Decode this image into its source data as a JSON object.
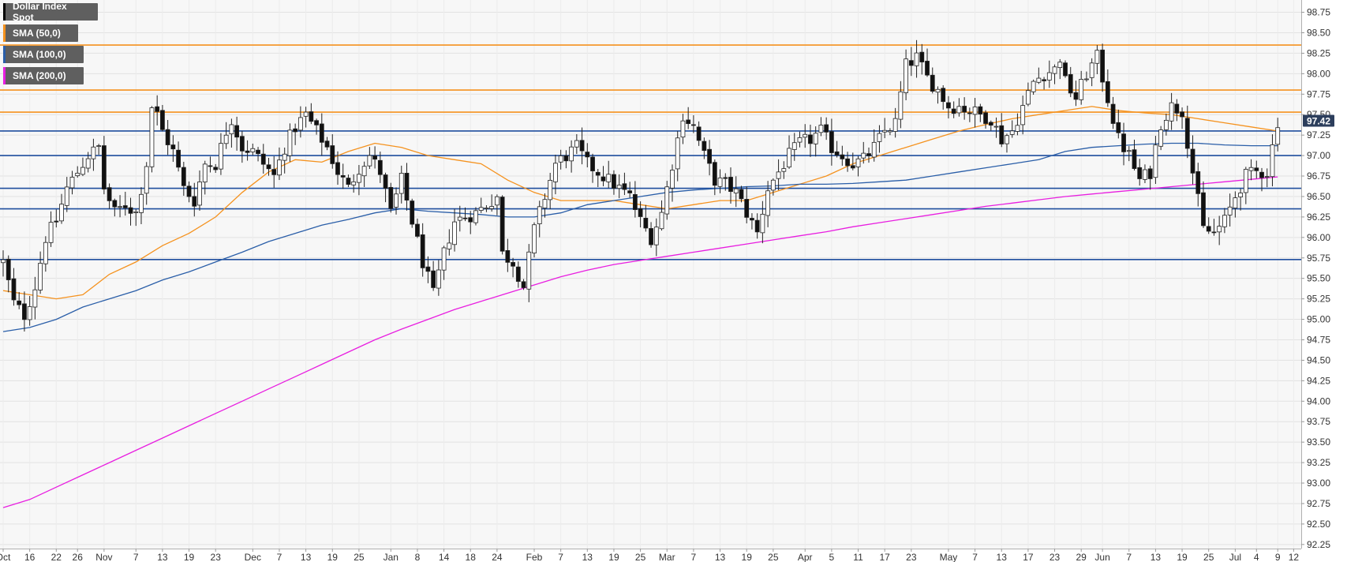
{
  "legend": [
    {
      "label": "Dollar Index Spot",
      "color": "#000000"
    },
    {
      "label": "SMA (50,0)",
      "color": "#f5921e"
    },
    {
      "label": "SMA (100,0)",
      "color": "#2a5ea8"
    },
    {
      "label": "SMA (200,0)",
      "color": "#e81ee0"
    }
  ],
  "last_price": "97.42",
  "chart_data": {
    "type": "candlestick",
    "instrument": "Dollar Index Spot",
    "ylim": [
      92.2,
      98.9
    ],
    "y_ticks": [
      "92.25",
      "92.50",
      "92.75",
      "93.00",
      "93.25",
      "93.50",
      "93.75",
      "94.00",
      "94.25",
      "94.50",
      "94.75",
      "95.00",
      "95.25",
      "95.50",
      "95.75",
      "96.00",
      "96.25",
      "96.50",
      "96.75",
      "97.00",
      "97.25",
      "97.50",
      "97.75",
      "98.00",
      "98.25",
      "98.50",
      "98.75"
    ],
    "x_ticks": [
      {
        "label": "Oct",
        "bar": 0
      },
      {
        "label": "16",
        "bar": 5
      },
      {
        "label": "22",
        "bar": 10
      },
      {
        "label": "26",
        "bar": 14
      },
      {
        "label": "Nov",
        "bar": 19
      },
      {
        "label": "7",
        "bar": 25
      },
      {
        "label": "13",
        "bar": 30
      },
      {
        "label": "19",
        "bar": 35
      },
      {
        "label": "23",
        "bar": 40
      },
      {
        "label": "Dec",
        "bar": 47
      },
      {
        "label": "7",
        "bar": 52
      },
      {
        "label": "13",
        "bar": 57
      },
      {
        "label": "19",
        "bar": 62
      },
      {
        "label": "25",
        "bar": 67
      },
      {
        "label": "Jan",
        "bar": 73
      },
      {
        "label": "8",
        "bar": 78
      },
      {
        "label": "14",
        "bar": 83
      },
      {
        "label": "18",
        "bar": 88
      },
      {
        "label": "24",
        "bar": 93
      },
      {
        "label": "Feb",
        "bar": 100
      },
      {
        "label": "7",
        "bar": 105
      },
      {
        "label": "13",
        "bar": 110
      },
      {
        "label": "19",
        "bar": 115
      },
      {
        "label": "25",
        "bar": 120
      },
      {
        "label": "Mar",
        "bar": 125
      },
      {
        "label": "7",
        "bar": 130
      },
      {
        "label": "13",
        "bar": 135
      },
      {
        "label": "19",
        "bar": 140
      },
      {
        "label": "25",
        "bar": 145
      },
      {
        "label": "Apr",
        "bar": 151
      },
      {
        "label": "5",
        "bar": 156
      },
      {
        "label": "11",
        "bar": 161
      },
      {
        "label": "17",
        "bar": 166
      },
      {
        "label": "23",
        "bar": 171
      },
      {
        "label": "May",
        "bar": 178
      },
      {
        "label": "7",
        "bar": 183
      },
      {
        "label": "13",
        "bar": 188
      },
      {
        "label": "17",
        "bar": 193
      },
      {
        "label": "23",
        "bar": 198
      },
      {
        "label": "29",
        "bar": 203
      },
      {
        "label": "Jun",
        "bar": 207
      },
      {
        "label": "7",
        "bar": 212
      },
      {
        "label": "13",
        "bar": 217
      },
      {
        "label": "19",
        "bar": 222
      },
      {
        "label": "25",
        "bar": 227
      },
      {
        "label": "Jul",
        "bar": 232
      },
      {
        "label": "4",
        "bar": 236
      },
      {
        "label": "9",
        "bar": 240
      },
      {
        "label": "12",
        "bar": 243
      }
    ],
    "horizontal_levels": [
      {
        "value": 98.35,
        "color": "#f5921e"
      },
      {
        "value": 97.8,
        "color": "#f5921e"
      },
      {
        "value": 97.53,
        "color": "#f5921e"
      },
      {
        "value": 97.3,
        "color": "#1f4e9e"
      },
      {
        "value": 97.0,
        "color": "#1f4e9e"
      },
      {
        "value": 96.6,
        "color": "#1f4e9e"
      },
      {
        "value": 96.35,
        "color": "#1f4e9e"
      },
      {
        "value": 95.73,
        "color": "#1f4e9e"
      }
    ],
    "anchors": [
      [
        0,
        95.7
      ],
      [
        2,
        95.2
      ],
      [
        4,
        95.05
      ],
      [
        6,
        95.4
      ],
      [
        8,
        96.0
      ],
      [
        10,
        96.2
      ],
      [
        12,
        96.6
      ],
      [
        14,
        96.8
      ],
      [
        16,
        97.0
      ],
      [
        18,
        97.1
      ],
      [
        19,
        96.6
      ],
      [
        21,
        96.3
      ],
      [
        23,
        96.4
      ],
      [
        25,
        96.3
      ],
      [
        27,
        96.9
      ],
      [
        28,
        97.6
      ],
      [
        29,
        97.5
      ],
      [
        30,
        97.3
      ],
      [
        32,
        97.05
      ],
      [
        34,
        96.6
      ],
      [
        36,
        96.45
      ],
      [
        38,
        96.9
      ],
      [
        40,
        96.9
      ],
      [
        42,
        97.3
      ],
      [
        43,
        97.45
      ],
      [
        45,
        97.1
      ],
      [
        47,
        97.05
      ],
      [
        49,
        96.9
      ],
      [
        51,
        96.75
      ],
      [
        53,
        97.1
      ],
      [
        55,
        97.35
      ],
      [
        57,
        97.5
      ],
      [
        59,
        97.3
      ],
      [
        61,
        97.1
      ],
      [
        63,
        96.8
      ],
      [
        65,
        96.6
      ],
      [
        67,
        96.85
      ],
      [
        69,
        97.0
      ],
      [
        71,
        96.8
      ],
      [
        73,
        96.3
      ],
      [
        75,
        96.7
      ],
      [
        77,
        96.2
      ],
      [
        79,
        95.7
      ],
      [
        81,
        95.3
      ],
      [
        83,
        95.8
      ],
      [
        85,
        96.2
      ],
      [
        87,
        96.25
      ],
      [
        89,
        96.3
      ],
      [
        91,
        96.4
      ],
      [
        93,
        96.5
      ],
      [
        94,
        95.8
      ],
      [
        96,
        95.7
      ],
      [
        98,
        95.4
      ],
      [
        100,
        96.1
      ],
      [
        102,
        96.5
      ],
      [
        104,
        96.9
      ],
      [
        106,
        97.0
      ],
      [
        108,
        97.1
      ],
      [
        110,
        96.9
      ],
      [
        112,
        96.8
      ],
      [
        114,
        96.7
      ],
      [
        116,
        96.6
      ],
      [
        118,
        96.5
      ],
      [
        120,
        96.2
      ],
      [
        122,
        96.0
      ],
      [
        124,
        96.3
      ],
      [
        126,
        96.9
      ],
      [
        128,
        97.5
      ],
      [
        130,
        97.35
      ],
      [
        132,
        97.0
      ],
      [
        134,
        96.7
      ],
      [
        136,
        96.65
      ],
      [
        138,
        96.55
      ],
      [
        140,
        96.3
      ],
      [
        142,
        96.05
      ],
      [
        144,
        96.6
      ],
      [
        146,
        96.8
      ],
      [
        148,
        97.0
      ],
      [
        150,
        97.15
      ],
      [
        152,
        97.2
      ],
      [
        154,
        97.3
      ],
      [
        156,
        97.1
      ],
      [
        158,
        97.0
      ],
      [
        160,
        96.9
      ],
      [
        162,
        96.95
      ],
      [
        164,
        97.1
      ],
      [
        166,
        97.3
      ],
      [
        168,
        97.4
      ],
      [
        170,
        98.1
      ],
      [
        172,
        98.2
      ],
      [
        174,
        97.95
      ],
      [
        176,
        97.8
      ],
      [
        178,
        97.6
      ],
      [
        180,
        97.6
      ],
      [
        182,
        97.55
      ],
      [
        184,
        97.5
      ],
      [
        186,
        97.45
      ],
      [
        188,
        97.2
      ],
      [
        190,
        97.3
      ],
      [
        192,
        97.6
      ],
      [
        194,
        97.9
      ],
      [
        196,
        98.0
      ],
      [
        198,
        98.05
      ],
      [
        199,
        98.2
      ],
      [
        200,
        97.9
      ],
      [
        202,
        97.7
      ],
      [
        204,
        98.0
      ],
      [
        206,
        98.2
      ],
      [
        208,
        97.7
      ],
      [
        210,
        97.2
      ],
      [
        212,
        97.0
      ],
      [
        214,
        96.7
      ],
      [
        216,
        96.8
      ],
      [
        218,
        97.4
      ],
      [
        220,
        97.6
      ],
      [
        222,
        97.55
      ],
      [
        224,
        96.8
      ],
      [
        226,
        96.1
      ],
      [
        228,
        96.05
      ],
      [
        230,
        96.2
      ],
      [
        232,
        96.5
      ],
      [
        234,
        96.75
      ],
      [
        236,
        96.8
      ],
      [
        238,
        96.8
      ],
      [
        240,
        97.42
      ]
    ],
    "sma": [
      {
        "name": "SMA (50,0)",
        "color": "#f5921e",
        "points": [
          [
            0,
            95.35
          ],
          [
            5,
            95.3
          ],
          [
            10,
            95.25
          ],
          [
            15,
            95.3
          ],
          [
            20,
            95.55
          ],
          [
            25,
            95.7
          ],
          [
            30,
            95.9
          ],
          [
            35,
            96.05
          ],
          [
            40,
            96.25
          ],
          [
            45,
            96.55
          ],
          [
            50,
            96.8
          ],
          [
            55,
            96.95
          ],
          [
            60,
            96.92
          ],
          [
            65,
            97.05
          ],
          [
            70,
            97.15
          ],
          [
            75,
            97.1
          ],
          [
            80,
            97.0
          ],
          [
            85,
            96.95
          ],
          [
            90,
            96.9
          ],
          [
            95,
            96.7
          ],
          [
            100,
            96.55
          ],
          [
            105,
            96.45
          ],
          [
            110,
            96.45
          ],
          [
            115,
            96.45
          ],
          [
            120,
            96.4
          ],
          [
            125,
            96.35
          ],
          [
            130,
            96.4
          ],
          [
            135,
            96.45
          ],
          [
            140,
            96.45
          ],
          [
            145,
            96.55
          ],
          [
            150,
            96.65
          ],
          [
            155,
            96.75
          ],
          [
            160,
            96.9
          ],
          [
            165,
            97.0
          ],
          [
            170,
            97.1
          ],
          [
            175,
            97.2
          ],
          [
            180,
            97.3
          ],
          [
            185,
            97.38
          ],
          [
            190,
            97.45
          ],
          [
            195,
            97.5
          ],
          [
            200,
            97.55
          ],
          [
            205,
            97.6
          ],
          [
            210,
            97.55
          ],
          [
            215,
            97.52
          ],
          [
            220,
            97.5
          ],
          [
            225,
            97.45
          ],
          [
            230,
            97.4
          ],
          [
            235,
            97.35
          ],
          [
            240,
            97.3
          ]
        ]
      },
      {
        "name": "SMA (100,0)",
        "color": "#2a5ea8",
        "points": [
          [
            0,
            94.85
          ],
          [
            5,
            94.9
          ],
          [
            10,
            95.0
          ],
          [
            15,
            95.15
          ],
          [
            20,
            95.25
          ],
          [
            25,
            95.35
          ],
          [
            30,
            95.48
          ],
          [
            35,
            95.58
          ],
          [
            40,
            95.7
          ],
          [
            45,
            95.82
          ],
          [
            50,
            95.95
          ],
          [
            55,
            96.05
          ],
          [
            60,
            96.15
          ],
          [
            65,
            96.22
          ],
          [
            70,
            96.3
          ],
          [
            75,
            96.35
          ],
          [
            80,
            96.32
          ],
          [
            85,
            96.3
          ],
          [
            90,
            96.28
          ],
          [
            95,
            96.25
          ],
          [
            100,
            96.25
          ],
          [
            105,
            96.3
          ],
          [
            110,
            96.4
          ],
          [
            115,
            96.45
          ],
          [
            120,
            96.5
          ],
          [
            125,
            96.55
          ],
          [
            130,
            96.58
          ],
          [
            135,
            96.6
          ],
          [
            140,
            96.62
          ],
          [
            145,
            96.63
          ],
          [
            150,
            96.65
          ],
          [
            155,
            96.65
          ],
          [
            160,
            96.66
          ],
          [
            165,
            96.68
          ],
          [
            170,
            96.7
          ],
          [
            175,
            96.75
          ],
          [
            180,
            96.8
          ],
          [
            185,
            96.85
          ],
          [
            190,
            96.9
          ],
          [
            195,
            96.95
          ],
          [
            200,
            97.05
          ],
          [
            205,
            97.1
          ],
          [
            210,
            97.12
          ],
          [
            215,
            97.14
          ],
          [
            220,
            97.15
          ],
          [
            225,
            97.15
          ],
          [
            230,
            97.13
          ],
          [
            235,
            97.12
          ],
          [
            240,
            97.12
          ]
        ]
      },
      {
        "name": "SMA (200,0)",
        "color": "#e81ee0",
        "points": [
          [
            0,
            92.7
          ],
          [
            5,
            92.8
          ],
          [
            10,
            92.95
          ],
          [
            15,
            93.1
          ],
          [
            20,
            93.25
          ],
          [
            25,
            93.4
          ],
          [
            30,
            93.55
          ],
          [
            35,
            93.7
          ],
          [
            40,
            93.85
          ],
          [
            45,
            94.0
          ],
          [
            50,
            94.15
          ],
          [
            55,
            94.3
          ],
          [
            60,
            94.45
          ],
          [
            65,
            94.6
          ],
          [
            70,
            94.75
          ],
          [
            75,
            94.88
          ],
          [
            80,
            95.0
          ],
          [
            85,
            95.12
          ],
          [
            90,
            95.22
          ],
          [
            95,
            95.32
          ],
          [
            100,
            95.42
          ],
          [
            105,
            95.52
          ],
          [
            110,
            95.6
          ],
          [
            115,
            95.67
          ],
          [
            120,
            95.72
          ],
          [
            125,
            95.77
          ],
          [
            130,
            95.82
          ],
          [
            135,
            95.87
          ],
          [
            140,
            95.92
          ],
          [
            145,
            95.97
          ],
          [
            150,
            96.02
          ],
          [
            155,
            96.07
          ],
          [
            160,
            96.13
          ],
          [
            165,
            96.18
          ],
          [
            170,
            96.23
          ],
          [
            175,
            96.28
          ],
          [
            180,
            96.33
          ],
          [
            185,
            96.38
          ],
          [
            190,
            96.42
          ],
          [
            195,
            96.46
          ],
          [
            200,
            96.5
          ],
          [
            205,
            96.53
          ],
          [
            210,
            96.56
          ],
          [
            215,
            96.59
          ],
          [
            220,
            96.62
          ],
          [
            225,
            96.65
          ],
          [
            230,
            96.68
          ],
          [
            235,
            96.71
          ],
          [
            240,
            96.74
          ]
        ]
      }
    ]
  }
}
